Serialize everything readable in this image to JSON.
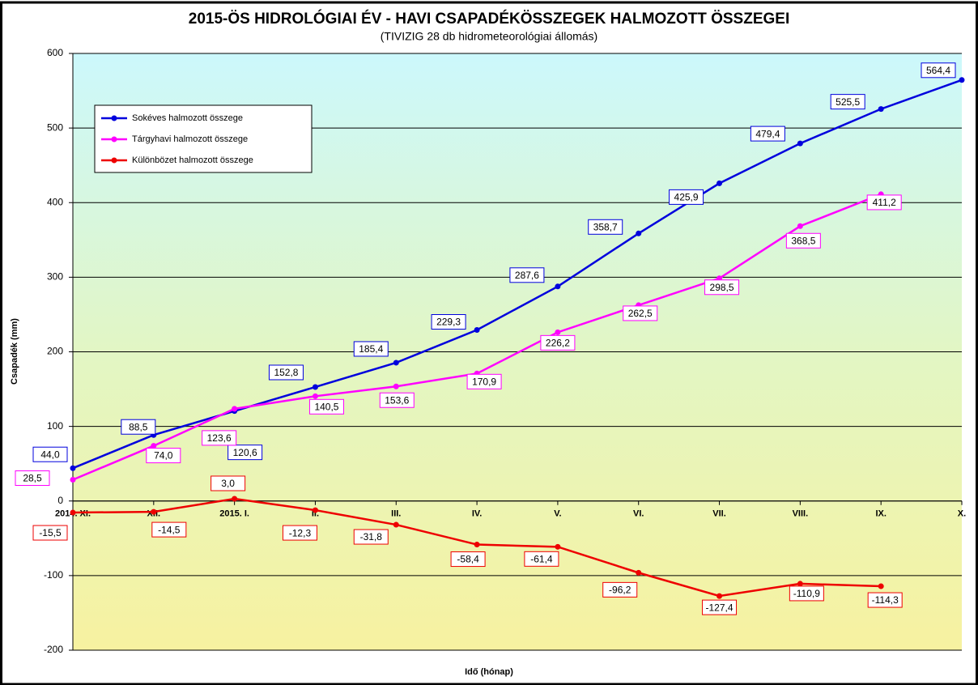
{
  "chart_data": {
    "type": "line",
    "title": "2015-ÖS HIDROLÓGIAI ÉV - HAVI CSAPADÉKÖSSZEGEK HALMOZOTT ÖSSZEGEI",
    "subtitle": "(TIVIZIG 28 db hidrometeorológiai állomás)",
    "x_label": "Idő (hónap)",
    "y_label": "Csapadék (mm)",
    "categories": [
      "2014. XI.",
      "XII.",
      "2015. I.",
      "II.",
      "III.",
      "IV.",
      "V.",
      "VI.",
      "VII.",
      "VIII.",
      "IX.",
      "X."
    ],
    "series": [
      {
        "name": "Sokéves halmozott összege",
        "color": "#0000dd",
        "values": [
          44.0,
          88.5,
          120.6,
          152.8,
          185.4,
          229.3,
          287.6,
          358.7,
          425.9,
          479.4,
          525.5,
          564.4
        ],
        "value_labels": [
          "44,0",
          "88,5",
          "120,6",
          "152,8",
          "185,4",
          "229,3",
          "287,6",
          "358,7",
          "425,9",
          "479,4",
          "525,5",
          "564,4"
        ]
      },
      {
        "name": "Tárgyhavi halmozott összege",
        "color": "#ff00ff",
        "values": [
          28.5,
          74.0,
          123.6,
          140.5,
          153.6,
          170.9,
          226.2,
          262.5,
          298.5,
          368.5,
          411.2,
          null
        ],
        "value_labels": [
          "28,5",
          "74,0",
          "123,6",
          "140,5",
          "153,6",
          "170,9",
          "226,2",
          "262,5",
          "298,5",
          "368,5",
          "411,2",
          null
        ]
      },
      {
        "name": "Különbözet halmozott összege",
        "color": "#ee0000",
        "values": [
          -15.5,
          -14.5,
          3.0,
          -12.3,
          -31.8,
          -58.4,
          -61.4,
          -96.2,
          -127.4,
          -110.9,
          -114.3,
          null
        ],
        "value_labels": [
          "-15,5",
          "-14,5",
          "3,0",
          "-12,3",
          "-31,8",
          "-58,4",
          "-61,4",
          "-96,2",
          "-127,4",
          "-110,9",
          "-114,3",
          null
        ]
      }
    ],
    "ylim": [
      -200,
      600
    ],
    "yticks": [
      -200,
      -100,
      0,
      100,
      200,
      300,
      400,
      500,
      600
    ],
    "grid": true,
    "legend": "upper left"
  }
}
